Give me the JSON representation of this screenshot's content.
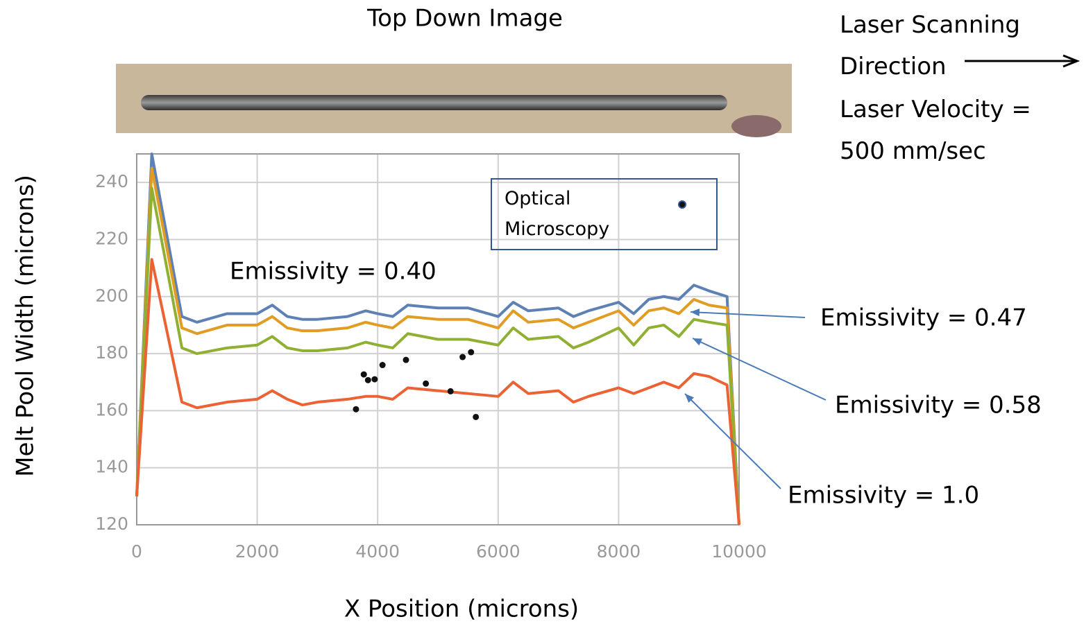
{
  "chart_data": {
    "type": "line",
    "title": "Top Down Image",
    "notes": [
      "Laser Scanning Direction",
      "Laser Velocity = 500 mm/sec"
    ],
    "x_label": "X Position (microns)",
    "y_label": "Melt Pool Width (microns)",
    "xlim": [
      0,
      10000
    ],
    "xticks": [
      0,
      2000,
      4000,
      6000,
      8000,
      10000
    ],
    "ylim": [
      120,
      250
    ],
    "yticks": [
      120,
      140,
      160,
      180,
      200,
      220,
      240
    ],
    "grid": true,
    "x": [
      0,
      250,
      750,
      1000,
      1500,
      2000,
      2250,
      2500,
      2750,
      3000,
      3500,
      3800,
      4000,
      4250,
      4500,
      5000,
      5500,
      6000,
      6250,
      6500,
      7000,
      7250,
      7500,
      8000,
      8250,
      8500,
      8750,
      9000,
      9250,
      9500,
      9800,
      10000
    ],
    "series": [
      {
        "name": "Emissivity = 0.40",
        "color": "#5e81b5",
        "values": [
          130,
          250,
          193,
          191,
          194,
          194,
          197,
          193,
          192,
          192,
          193,
          195,
          194,
          193,
          197,
          196,
          196,
          193,
          198,
          195,
          196,
          193,
          195,
          198,
          194,
          199,
          200,
          199,
          204,
          202,
          200,
          120
        ]
      },
      {
        "name": "Emissivity = 0.47",
        "color": "#e19c24",
        "values": [
          130,
          245,
          189,
          187,
          190,
          190,
          193,
          189,
          188,
          188,
          189,
          191,
          190,
          189,
          193,
          192,
          192,
          189,
          195,
          191,
          192,
          189,
          191,
          195,
          190,
          195,
          196,
          194,
          199,
          197,
          196,
          120
        ]
      },
      {
        "name": "Emissivity = 0.58",
        "color": "#8fb032",
        "values": [
          130,
          238,
          182,
          180,
          182,
          183,
          186,
          182,
          181,
          181,
          182,
          184,
          183,
          182,
          187,
          185,
          185,
          183,
          189,
          185,
          186,
          182,
          184,
          189,
          183,
          189,
          190,
          186,
          192,
          191,
          190,
          120
        ]
      },
      {
        "name": "Emissivity = 1.0",
        "color": "#eb6235",
        "values": [
          130,
          213,
          163,
          161,
          163,
          164,
          167,
          164,
          162,
          163,
          164,
          165,
          165,
          164,
          168,
          167,
          166,
          165,
          170,
          166,
          167,
          163,
          165,
          168,
          166,
          168,
          170,
          168,
          173,
          172,
          169,
          120
        ]
      }
    ],
    "scatter": {
      "name": "Optical Microscopy",
      "color": "#111111",
      "x": [
        3640,
        3770,
        3840,
        3950,
        4080,
        4470,
        4800,
        5210,
        5410,
        5550,
        5630
      ],
      "values": [
        160.5,
        172.7,
        170.7,
        171,
        176,
        177.8,
        169.5,
        166.8,
        178.8,
        180.5,
        157.8
      ]
    }
  }
}
